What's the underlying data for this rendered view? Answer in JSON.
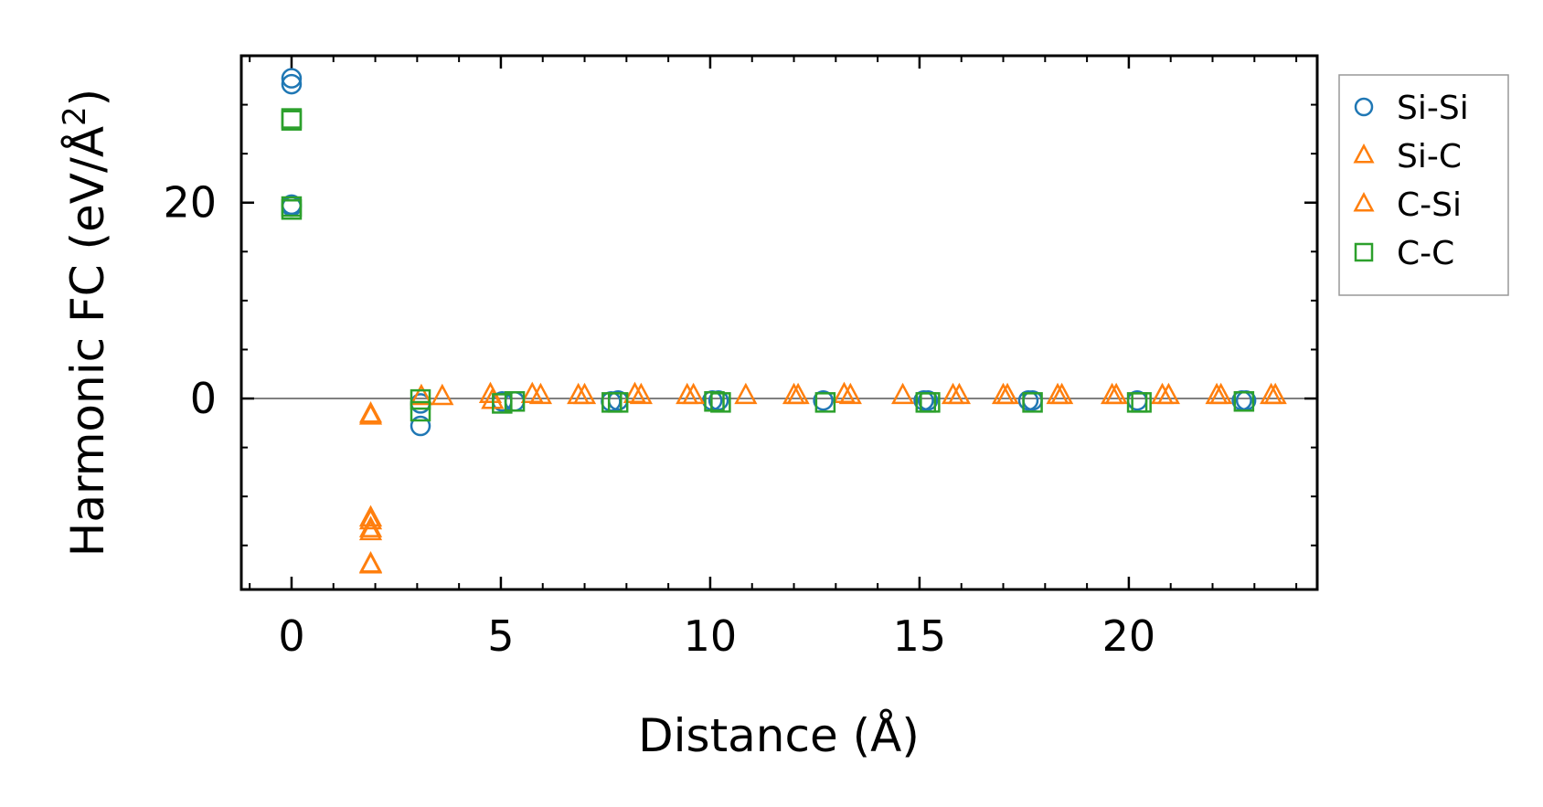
{
  "chart_data": {
    "type": "scatter",
    "xlabel": "Distance (Å)",
    "ylabel": "Harmonic FC (eV/Å",
    "ylabel_superscript": "2",
    "ylabel_close": ")",
    "xlim": [
      -1.2,
      24.5
    ],
    "ylim": [
      -19.5,
      35
    ],
    "xticks": [
      0,
      5,
      10,
      15,
      20
    ],
    "xtick_labels": [
      "0",
      "5",
      "10",
      "15",
      "20"
    ],
    "yticks": [
      0,
      20
    ],
    "ytick_labels": [
      "0",
      "20"
    ],
    "x_minor_step": 1,
    "y_minor_step": 5,
    "zero_line": 0,
    "legend_position": "outside-right",
    "series": [
      {
        "name": "Si-Si",
        "marker": "circle",
        "color": "#1f77b4",
        "points": [
          [
            0,
            32.7
          ],
          [
            0,
            32.1
          ],
          [
            0,
            19.8
          ],
          [
            0,
            19.6
          ],
          [
            3.08,
            -2.8
          ],
          [
            3.08,
            -0.5
          ],
          [
            5.03,
            -0.3
          ],
          [
            5.33,
            -0.3
          ],
          [
            7.63,
            -0.3
          ],
          [
            7.8,
            -0.2
          ],
          [
            10.05,
            -0.2
          ],
          [
            10.2,
            -0.2
          ],
          [
            12.7,
            -0.2
          ],
          [
            15.1,
            -0.2
          ],
          [
            15.2,
            -0.2
          ],
          [
            17.6,
            -0.2
          ],
          [
            17.7,
            -0.2
          ],
          [
            20.2,
            -0.2
          ],
          [
            22.7,
            -0.2
          ],
          [
            22.8,
            -0.2
          ]
        ]
      },
      {
        "name": "Si-C",
        "marker": "triangle",
        "color": "#ff7f0e",
        "points": [
          [
            1.89,
            -1.8
          ],
          [
            1.89,
            -12.5
          ],
          [
            1.89,
            -13.3
          ],
          [
            1.89,
            -17.0
          ],
          [
            3.6,
            0.2
          ],
          [
            4.75,
            0.4
          ],
          [
            5.75,
            0.4
          ],
          [
            7.0,
            0.3
          ],
          [
            8.2,
            0.4
          ],
          [
            9.45,
            0.3
          ],
          [
            10.85,
            0.3
          ],
          [
            12.0,
            0.3
          ],
          [
            13.2,
            0.4
          ],
          [
            14.6,
            0.3
          ],
          [
            15.8,
            0.3
          ],
          [
            17.0,
            0.3
          ],
          [
            18.3,
            0.3
          ],
          [
            19.6,
            0.3
          ],
          [
            20.8,
            0.3
          ],
          [
            22.1,
            0.3
          ],
          [
            23.4,
            0.3
          ]
        ]
      },
      {
        "name": "C-Si",
        "marker": "triangle",
        "color": "#ff7f0e",
        "points": [
          [
            1.89,
            -1.6
          ],
          [
            1.89,
            -12.2
          ],
          [
            1.89,
            -13.6
          ],
          [
            1.89,
            -16.9
          ],
          [
            3.1,
            0.2
          ],
          [
            4.8,
            -0.2
          ],
          [
            5.95,
            0.3
          ],
          [
            6.85,
            0.3
          ],
          [
            8.35,
            0.3
          ],
          [
            9.6,
            0.3
          ],
          [
            12.1,
            0.3
          ],
          [
            13.35,
            0.3
          ],
          [
            15.95,
            0.3
          ],
          [
            17.1,
            0.3
          ],
          [
            18.4,
            0.3
          ],
          [
            19.7,
            0.3
          ],
          [
            20.95,
            0.3
          ],
          [
            22.2,
            0.3
          ],
          [
            23.5,
            0.3
          ]
        ]
      },
      {
        "name": "C-C",
        "marker": "square",
        "color": "#2ca02c",
        "points": [
          [
            0,
            28.6
          ],
          [
            0,
            28.4
          ],
          [
            0,
            19.6
          ],
          [
            0,
            19.3
          ],
          [
            3.08,
            -0.1
          ],
          [
            3.08,
            -1.3
          ],
          [
            5.03,
            -0.5
          ],
          [
            5.33,
            -0.3
          ],
          [
            7.65,
            -0.4
          ],
          [
            7.8,
            -0.4
          ],
          [
            10.1,
            -0.3
          ],
          [
            10.25,
            -0.4
          ],
          [
            12.75,
            -0.4
          ],
          [
            15.15,
            -0.4
          ],
          [
            15.25,
            -0.4
          ],
          [
            17.7,
            -0.4
          ],
          [
            20.2,
            -0.4
          ],
          [
            20.3,
            -0.4
          ],
          [
            22.75,
            -0.3
          ]
        ]
      }
    ]
  }
}
